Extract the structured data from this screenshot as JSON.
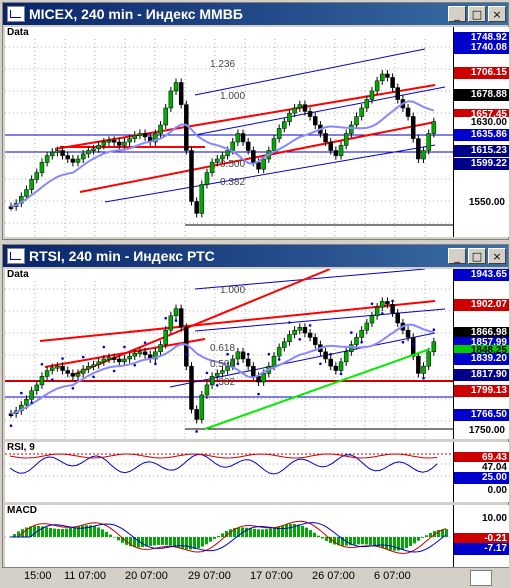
{
  "window1": {
    "title": "MICEX, 240 min - Индекс ММВБ",
    "pane_label": "Data",
    "fib_levels": [
      "1.236",
      "1.000",
      "0.500",
      "0.382"
    ],
    "price_tags": [
      {
        "value": "1748.92",
        "bg": "#0000cc",
        "fg": "#ffffff",
        "y": 5
      },
      {
        "value": "1740.08",
        "bg": "#0000cc",
        "fg": "#ffffff",
        "y": 15
      },
      {
        "value": "1706.15",
        "bg": "#cc0000",
        "fg": "#ffffff",
        "y": 40
      },
      {
        "value": "1678.88",
        "bg": "#000000",
        "fg": "#ffffff",
        "y": 62
      },
      {
        "value": "1657.45",
        "bg": "#cc0000",
        "fg": "#ffffff",
        "y": 82
      },
      {
        "value": "1630.00",
        "bg": "#ffffff",
        "fg": "#000000",
        "y": 90
      },
      {
        "value": "1635.86",
        "bg": "#0000cc",
        "fg": "#ffffff",
        "y": 102
      },
      {
        "value": "1615.23",
        "bg": "#000088",
        "fg": "#ffffff",
        "y": 118
      },
      {
        "value": "1599.22",
        "bg": "#000088",
        "fg": "#ffffff",
        "y": 131
      }
    ],
    "ticks": [
      {
        "value": "1550.00",
        "y": 170
      }
    ]
  },
  "window2": {
    "title": "RTSI, 240 min - Индекс РТС",
    "pane_label": "Data",
    "fib_levels": [
      "1.000",
      "0.618",
      "0.500",
      "0.382"
    ],
    "price_tags": [
      {
        "value": "1943.65",
        "bg": "#0000cc",
        "fg": "#ffffff",
        "y": 0
      },
      {
        "value": "1902.07",
        "bg": "#cc0000",
        "fg": "#ffffff",
        "y": 30
      },
      {
        "value": "1866.98",
        "bg": "#000000",
        "fg": "#ffffff",
        "y": 58
      },
      {
        "value": "1857.99",
        "bg": "#0000cc",
        "fg": "#ffffff",
        "y": 68
      },
      {
        "value": "1848.25",
        "bg": "#00cc00",
        "fg": "#000000",
        "y": 76
      },
      {
        "value": "1839.20",
        "bg": "#0000cc",
        "fg": "#ffffff",
        "y": 84
      },
      {
        "value": "1817.90",
        "bg": "#000088",
        "fg": "#ffffff",
        "y": 100
      },
      {
        "value": "1799.13",
        "bg": "#cc0000",
        "fg": "#ffffff",
        "y": 116
      },
      {
        "value": "1766.50",
        "bg": "#0000cc",
        "fg": "#ffffff",
        "y": 140
      }
    ],
    "ticks": [
      {
        "value": "1750.00",
        "y": 156
      }
    ],
    "rsi": {
      "label": "RSI, 9",
      "tags": [
        {
          "value": "69.43",
          "bg": "#cc0000",
          "fg": "#ffffff",
          "y": 10
        },
        {
          "value": "47.04",
          "bg": "#ffffff",
          "fg": "#000000",
          "y": 20
        },
        {
          "value": "25.00",
          "bg": "#0000cc",
          "fg": "#ffffff",
          "y": 30
        },
        {
          "value": "0.00",
          "bg": "#ffffff",
          "fg": "#000000",
          "y": 43
        }
      ]
    },
    "macd": {
      "label": "MACD",
      "tags": [
        {
          "value": "10.00",
          "bg": "#ffffff",
          "fg": "#000000",
          "y": 8
        },
        {
          "value": "-0.21",
          "bg": "#cc0000",
          "fg": "#ffffff",
          "y": 28
        },
        {
          "value": "-7.17",
          "bg": "#0000cc",
          "fg": "#ffffff",
          "y": 38
        }
      ]
    }
  },
  "x_axis": {
    "labels": [
      {
        "text": "15:00",
        "x": 22
      },
      {
        "text": "11 07:00",
        "x": 62
      },
      {
        "text": "20 07:00",
        "x": 123
      },
      {
        "text": "29 07:00",
        "x": 186
      },
      {
        "text": "17 07:00",
        "x": 248
      },
      {
        "text": "26 07:00",
        "x": 310
      },
      {
        "text": "6 07:00",
        "x": 372
      }
    ]
  },
  "window_buttons": {
    "minimize": "_",
    "maximize": "□",
    "close": "×"
  },
  "colors": {
    "fib": "#0000cc",
    "trend": "#ff0000",
    "ma": "#8888ff",
    "green": "#00ee00",
    "candle_up": "#00aa00",
    "candle_down": "#000000"
  }
}
